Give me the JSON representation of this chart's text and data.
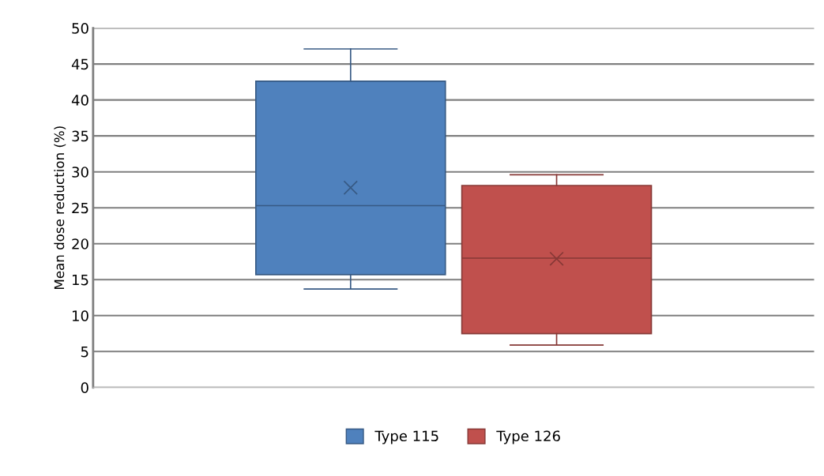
{
  "chart_data": {
    "type": "box",
    "ylabel": "Mean dose reduction (%)",
    "categories": [
      null
    ],
    "series": [
      {
        "name": "Type 115",
        "color": "#4f81bd",
        "boxes": [
          {
            "low": 13.7,
            "q1": 15.7,
            "median": 25.3,
            "q3": 42.6,
            "high": 47.1,
            "mean": 27.8
          }
        ]
      },
      {
        "name": "Type 126",
        "color": "#c0504d",
        "boxes": [
          {
            "low": 5.9,
            "q1": 7.5,
            "median": 18.0,
            "q3": 28.1,
            "high": 29.6,
            "mean": 17.9
          }
        ]
      }
    ],
    "ylim": [
      0,
      50
    ],
    "yticks": [
      0,
      5,
      10,
      15,
      20,
      25,
      30,
      35,
      40,
      45,
      50
    ],
    "grid": "y",
    "legend": "bottom"
  }
}
